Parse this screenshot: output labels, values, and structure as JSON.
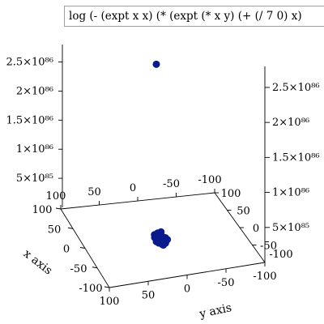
{
  "chart_data": {
    "type": "scatter",
    "title": "",
    "legend": {
      "label": "log (- (expt x x) (* (expt (* x y) (+ (/ 7 0) x)",
      "placement": "top-right"
    },
    "xlabel": "x axis",
    "ylabel": "y axis",
    "x_ticks": [
      "100",
      "50",
      "0",
      "-50",
      "-100"
    ],
    "x_ticks_far": [
      "100",
      "50",
      "0",
      "-50",
      "-100"
    ],
    "y_ticks": [
      "-100",
      "-50",
      "0",
      "50",
      "100"
    ],
    "y_ticks_far": [
      "-100",
      "-50",
      "0",
      "50",
      "100"
    ],
    "z_ticks_left": [
      "5×10⁸⁵",
      "1×10⁸⁶",
      "1.5×10⁸⁶",
      "2×10⁸⁶",
      "2.5×10⁸⁶"
    ],
    "z_ticks_right": [
      "5×10⁸⁵",
      "1×10⁸⁶",
      "1.5×10⁸⁶",
      "2×10⁸⁶",
      "2.5×10⁸⁶"
    ],
    "z_axis_min_label": "-100",
    "xlim": [
      -100,
      100
    ],
    "ylim": [
      -100,
      100
    ],
    "zlim": [
      0,
      2.8e+86
    ],
    "color": "#0a1a8c",
    "points": [
      {
        "x": -5,
        "y": 20,
        "z": 0
      },
      {
        "x": 0,
        "y": 18,
        "z": 0
      },
      {
        "x": 5,
        "y": 15,
        "z": 0
      },
      {
        "x": -3,
        "y": 12,
        "z": 0
      },
      {
        "x": 2,
        "y": 10,
        "z": 0
      },
      {
        "x": 7,
        "y": 8,
        "z": 0
      },
      {
        "x": -6,
        "y": 5,
        "z": 0
      },
      {
        "x": -1,
        "y": 3,
        "z": 0
      },
      {
        "x": 4,
        "y": 1,
        "z": 0
      },
      {
        "x": -4,
        "y": -2,
        "z": 0
      },
      {
        "x": 1,
        "y": -4,
        "z": 0
      },
      {
        "x": 6,
        "y": -6,
        "z": 0
      },
      {
        "x": -2,
        "y": -8,
        "z": 0
      },
      {
        "x": 3,
        "y": -10,
        "z": 0
      },
      {
        "x": 0,
        "y": 6,
        "z": 0
      },
      {
        "x": 8,
        "y": -2,
        "z": 0
      },
      {
        "x": -7,
        "y": 0,
        "z": 0
      },
      {
        "x": 5,
        "y": 4,
        "z": 0
      },
      {
        "x": -3,
        "y": 16,
        "z": 0
      },
      {
        "x": 2,
        "y": -12,
        "z": 0
      },
      {
        "x": -8,
        "y": -30,
        "z": 2.67e+86
      }
    ]
  }
}
